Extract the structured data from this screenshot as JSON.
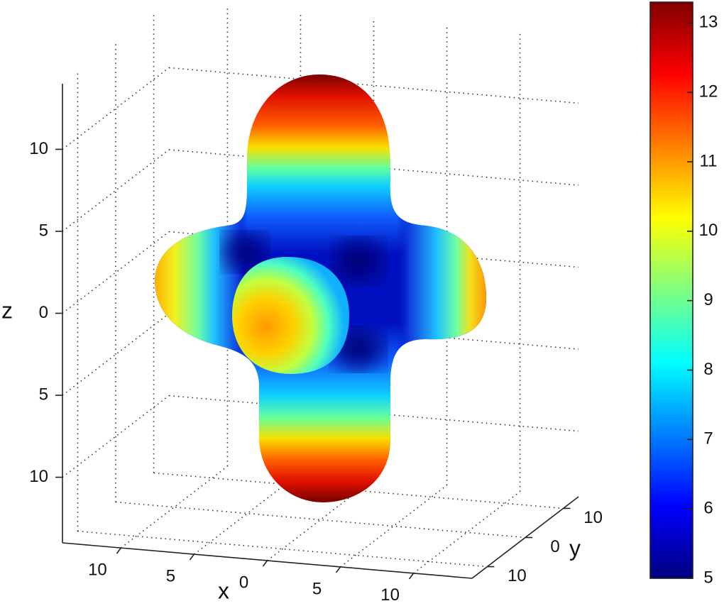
{
  "chart_data": {
    "type": "surface3d",
    "colormap": "jet",
    "xlabel": "x",
    "ylabel": "y",
    "zlabel": "z",
    "xlim": [
      -14,
      14
    ],
    "ylim": [
      -14,
      14
    ],
    "zlim": [
      -14,
      14
    ],
    "xticks": [
      {
        "value": -10,
        "label": "10"
      },
      {
        "value": -5,
        "label": "5"
      },
      0,
      5,
      10
    ],
    "yticks": [
      {
        "value": -10,
        "label": "10"
      },
      0,
      10
    ],
    "zticks": [
      {
        "value": -10,
        "label": "10"
      },
      {
        "value": -5,
        "label": "5"
      },
      0,
      5,
      10
    ],
    "grid": true,
    "colorbar": {
      "clim": [
        5,
        13.3
      ],
      "ticks": [
        5,
        6,
        7,
        8,
        9,
        10,
        11,
        12,
        13
      ]
    }
  }
}
